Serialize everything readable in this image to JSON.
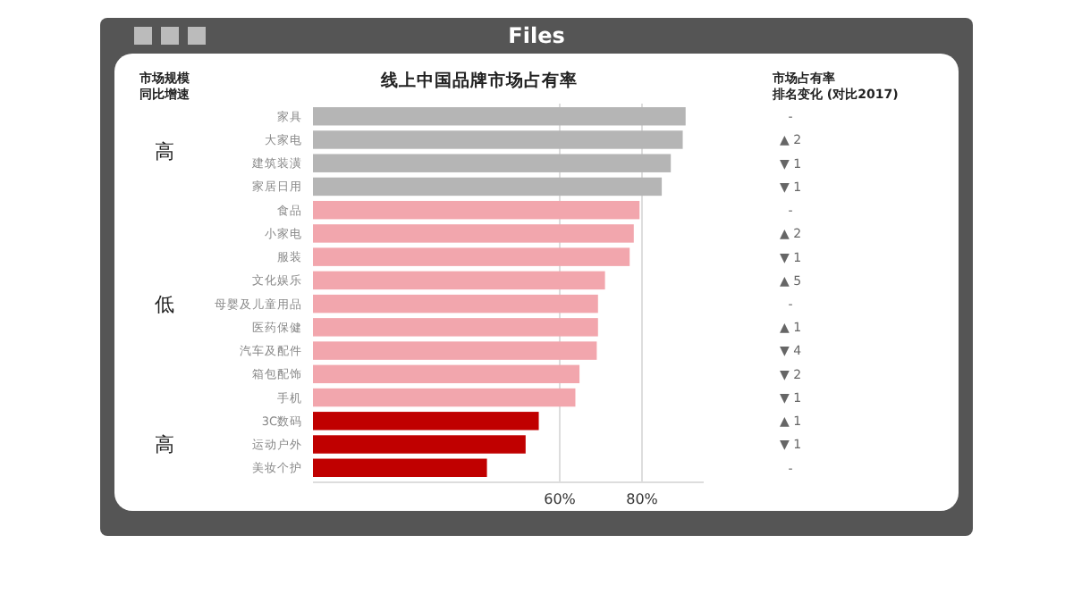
{
  "chart_data": {
    "type": "bar",
    "orientation": "horizontal",
    "title": "线上中国品牌市场占有率",
    "subtitle": "Files",
    "categories": [
      "家具",
      "大家电",
      "建筑装潢",
      "家居日用",
      "食品",
      "小家电",
      "服装",
      "文化娱乐",
      "母婴及儿童用品",
      "医药保健",
      "汽车及配件",
      "箱包配饰",
      "手机",
      "3C数码",
      "运动户外",
      "美妆个护"
    ],
    "values": [
      90.6,
      89.9,
      87,
      84.8,
      79.4,
      78,
      77,
      71,
      69.3,
      69.3,
      69,
      64.8,
      63.8,
      54.9,
      51.7,
      42.3
    ],
    "colors": [
      "#b5b5b5",
      "#b5b5b5",
      "#b5b5b5",
      "#b5b5b5",
      "#f2a6ad",
      "#f2a6ad",
      "#f2a6ad",
      "#f2a6ad",
      "#f2a6ad",
      "#f2a6ad",
      "#f2a6ad",
      "#f2a6ad",
      "#f2a6ad",
      "#c00000",
      "#c00000",
      "#c00000"
    ],
    "xlim": [
      0,
      95
    ],
    "xticks": [
      {
        "value": 60,
        "label": "60%"
      },
      {
        "value": 80,
        "label": "80%"
      }
    ],
    "grid": "x",
    "annotations": [
      "市场规模同比增速",
      "市场占有率排名变化 (对比2017)",
      "高",
      "低",
      "高",
      "-",
      "▲ 2",
      "▼ 1",
      "▼ 1",
      "-",
      "▲ 2",
      "▼ 1",
      "▲ 5",
      "-",
      "▲ 1",
      "▼ 4",
      "▼ 2",
      "▼ 1",
      "▲ 1",
      "▼ 1",
      "-"
    ]
  }
}
